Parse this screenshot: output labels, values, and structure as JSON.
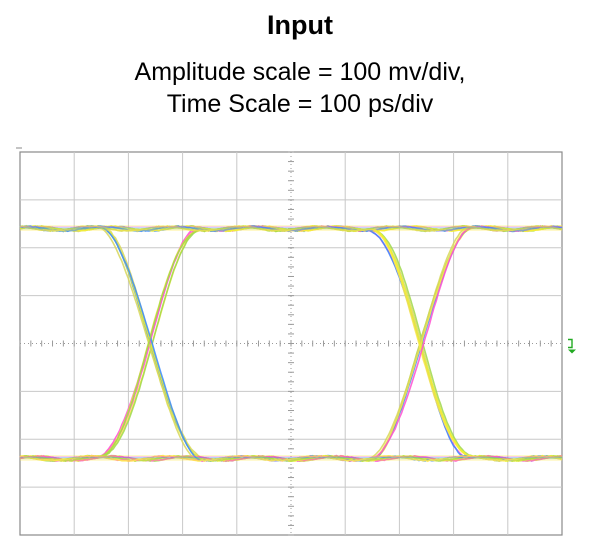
{
  "header": {
    "title": "Input",
    "subtitle_line1": "Amplitude scale = 100 mv/div,",
    "subtitle_line2": "Time Scale = 100 ps/div"
  },
  "chart_data": {
    "type": "eye-diagram",
    "title": "Input",
    "subtitle": "Amplitude scale = 100 mv/div, Time Scale = 100 ps/div",
    "amplitude_scale": "100 mv/div",
    "time_scale": "100 ps/div",
    "divisions": {
      "x": 10,
      "y": 8
    },
    "xlim_ps": [
      0,
      1000
    ],
    "ylim_mv": [
      -400,
      400
    ],
    "grid": true,
    "levels_mv": {
      "high": 240,
      "low": -240
    },
    "crossing_times_ps": [
      240,
      740
    ],
    "crossing_level_mv": 0,
    "unit_interval_ps": 500,
    "eye_opening_mv": 480,
    "trace_colors": [
      "#f2f22a",
      "#ff4fd0",
      "#3a8bff",
      "#9fd84a",
      "#d7d75a",
      "#ffe84a"
    ],
    "colors": {
      "grid": "#c8c8c8",
      "frame": "#8a8a8a",
      "center_axis": "#9a9a9a",
      "trigger_marker": "#22aa22"
    }
  }
}
